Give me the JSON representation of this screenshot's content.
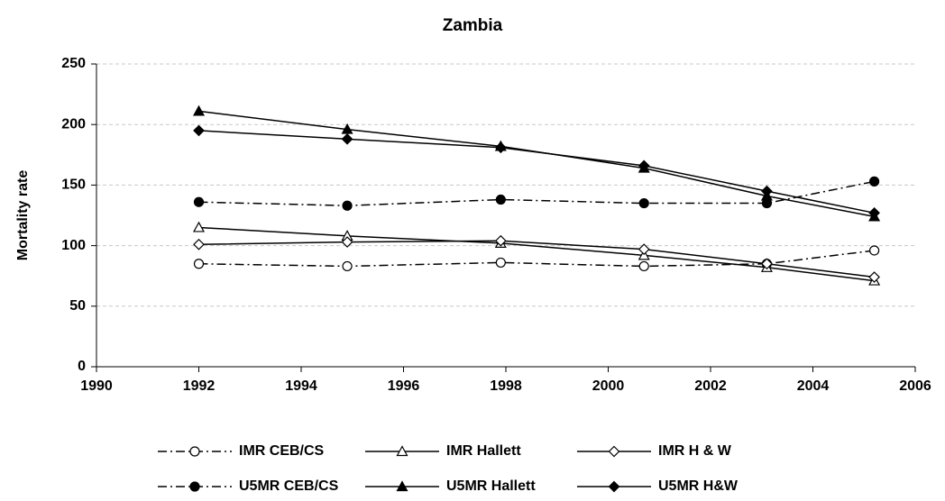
{
  "chart_data": {
    "type": "line",
    "title": "Zambia",
    "y_label": "Mortality rate",
    "x": [
      1992.0,
      1994.9,
      1997.9,
      2000.7,
      2003.1,
      2005.2
    ],
    "series": [
      {
        "name": "IMR CEB/CS",
        "color": "#000000",
        "line_style": "dashdot",
        "marker": "circle-open",
        "values": [
          85,
          83,
          86,
          83,
          85,
          96
        ]
      },
      {
        "name": "IMR Hallett",
        "color": "#000000",
        "line_style": "solid",
        "marker": "triangle-open",
        "values": [
          115,
          108,
          102,
          92,
          82,
          71
        ]
      },
      {
        "name": "IMR H & W",
        "color": "#000000",
        "line_style": "solid",
        "marker": "diamond-open",
        "values": [
          101,
          103,
          104,
          97,
          85,
          74
        ]
      },
      {
        "name": "U5MR CEB/CS",
        "color": "#000000",
        "line_style": "dashdot",
        "marker": "circle-filled",
        "values": [
          136,
          133,
          138,
          135,
          135,
          153
        ]
      },
      {
        "name": "U5MR Hallett",
        "color": "#000000",
        "line_style": "solid",
        "marker": "triangle-filled",
        "values": [
          211,
          196,
          182,
          164,
          141,
          124
        ]
      },
      {
        "name": "U5MR H&W",
        "color": "#000000",
        "line_style": "solid",
        "marker": "diamond-filled",
        "values": [
          195,
          188,
          181,
          166,
          145,
          127
        ]
      }
    ],
    "xlim": [
      1990,
      2006
    ],
    "xticks": [
      1990,
      1992,
      1994,
      1996,
      1998,
      2000,
      2002,
      2004,
      2006
    ],
    "ylim": [
      0,
      250
    ],
    "yticks": [
      0,
      50,
      100,
      150,
      200,
      250
    ],
    "grid": true
  }
}
